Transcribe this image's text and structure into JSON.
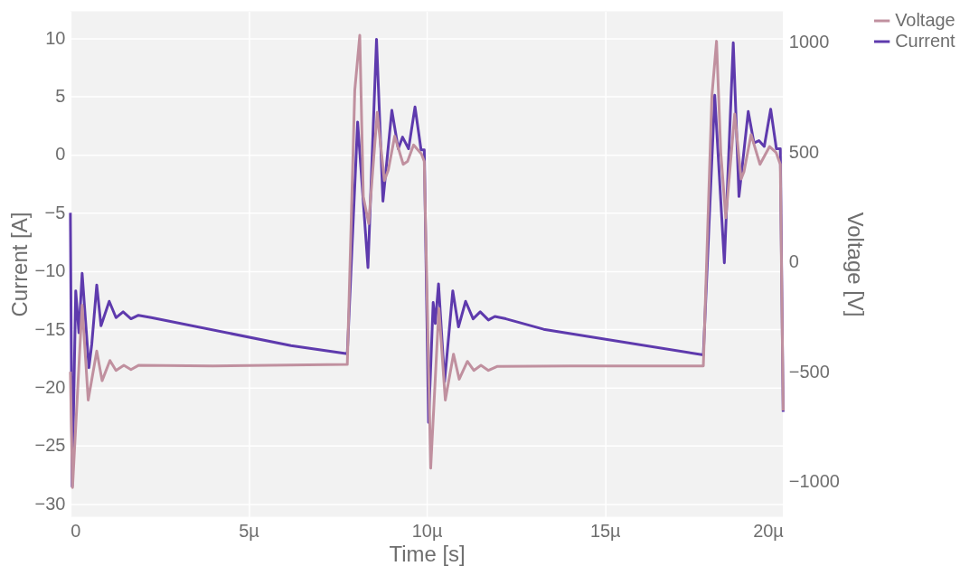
{
  "chart_data": {
    "type": "line",
    "xlabel": "Time [s]",
    "ylabel": "Current [A]",
    "y2label": "Voltage [V]",
    "xlim": [
      0,
      20
    ],
    "xticks": [
      0,
      {
        "value": 5,
        "label": "5µ"
      },
      {
        "value": 10,
        "label": "10µ"
      },
      {
        "value": 15,
        "label": "15µ"
      },
      {
        "value": 20,
        "label": "20µ"
      }
    ],
    "ylim": [
      -31.1,
      12.3
    ],
    "yticks": [
      {
        "value": -30,
        "label": "−30"
      },
      {
        "value": -25,
        "label": "−25"
      },
      {
        "value": -20,
        "label": "−20"
      },
      {
        "value": -15,
        "label": "−15"
      },
      {
        "value": -10,
        "label": "−10"
      },
      {
        "value": -5,
        "label": "−5"
      },
      0,
      5,
      10
    ],
    "y2lim": [
      -1160,
      1140
    ],
    "y2ticks": [
      {
        "value": -1000,
        "label": "−1000"
      },
      {
        "value": -500,
        "label": "−500"
      },
      0,
      500,
      1000
    ],
    "grid": true,
    "legend": "top right",
    "line_style": "solid",
    "series": [
      {
        "name": "Voltage",
        "color": "#c0909f",
        "axis": "y2",
        "x": [
          0,
          0.06,
          0.33,
          0.5,
          0.74,
          0.89,
          1.11,
          1.28,
          1.5,
          1.7,
          1.91,
          4,
          7.77,
          7.98,
          8.12,
          8.22,
          8.37,
          8.61,
          8.81,
          8.92,
          9.1,
          9.34,
          9.46,
          9.63,
          9.85,
          9.93,
          10.11,
          10.34,
          10.52,
          10.75,
          10.91,
          11.14,
          11.32,
          11.52,
          11.73,
          11.97,
          14,
          17.76,
          18.0,
          18.13,
          18.25,
          18.39,
          18.64,
          18.82,
          18.9,
          19.1,
          19.35,
          19.62,
          19.8,
          19.92,
          20
        ],
        "values": [
          -500,
          -1027,
          -197,
          -629,
          -406,
          -541,
          -449,
          -494,
          -471,
          -490,
          -471,
          -474,
          -467,
          781,
          1031,
          296,
          174,
          680,
          370,
          417,
          572,
          444,
          457,
          532,
          491,
          457,
          -939,
          -211,
          -629,
          -420,
          -534,
          -453,
          -494,
          -471,
          -494,
          -476,
          -474,
          -474,
          754,
          1004,
          498,
          201,
          673,
          377,
          410,
          579,
          444,
          525,
          498,
          444,
          -676
        ]
      },
      {
        "name": "Current",
        "color": "#5e3aad",
        "x": [
          0,
          0.05,
          0.15,
          0.24,
          0.33,
          0.52,
          0.6,
          0.74,
          0.86,
          1.09,
          1.28,
          1.48,
          1.7,
          1.91,
          2.27,
          6.19,
          7.77,
          8.06,
          8.35,
          8.59,
          8.77,
          9.02,
          9.2,
          9.32,
          9.49,
          9.67,
          9.84,
          9.93,
          10.05,
          10.18,
          10.24,
          10.33,
          10.5,
          10.73,
          10.89,
          11.09,
          11.3,
          11.5,
          11.73,
          11.91,
          12.22,
          13.28,
          17.76,
          18.08,
          18.35,
          18.6,
          18.76,
          19.02,
          19.18,
          19.32,
          19.47,
          19.65,
          19.81,
          19.92,
          20
        ],
        "values": [
          -5,
          -28.5,
          -11.7,
          -15.3,
          -10.2,
          -18.3,
          -16.3,
          -11.2,
          -14.7,
          -12.6,
          -14.0,
          -13.5,
          -14.1,
          -13.8,
          -14.0,
          -16.4,
          -17.1,
          2.8,
          -9.7,
          9.9,
          -4.0,
          3.8,
          0.5,
          1.5,
          0.5,
          4.1,
          0.4,
          0.4,
          -23,
          -12.7,
          -14.5,
          -11.1,
          -19.5,
          -11.7,
          -14.8,
          -12.6,
          -14.1,
          -13.5,
          -14.2,
          -13.9,
          -14.1,
          -15.0,
          -17.2,
          5.1,
          -9.3,
          9.6,
          -3.6,
          3.7,
          1.0,
          1.2,
          0.7,
          3.9,
          0.5,
          0.5,
          -22.1
        ]
      }
    ]
  }
}
